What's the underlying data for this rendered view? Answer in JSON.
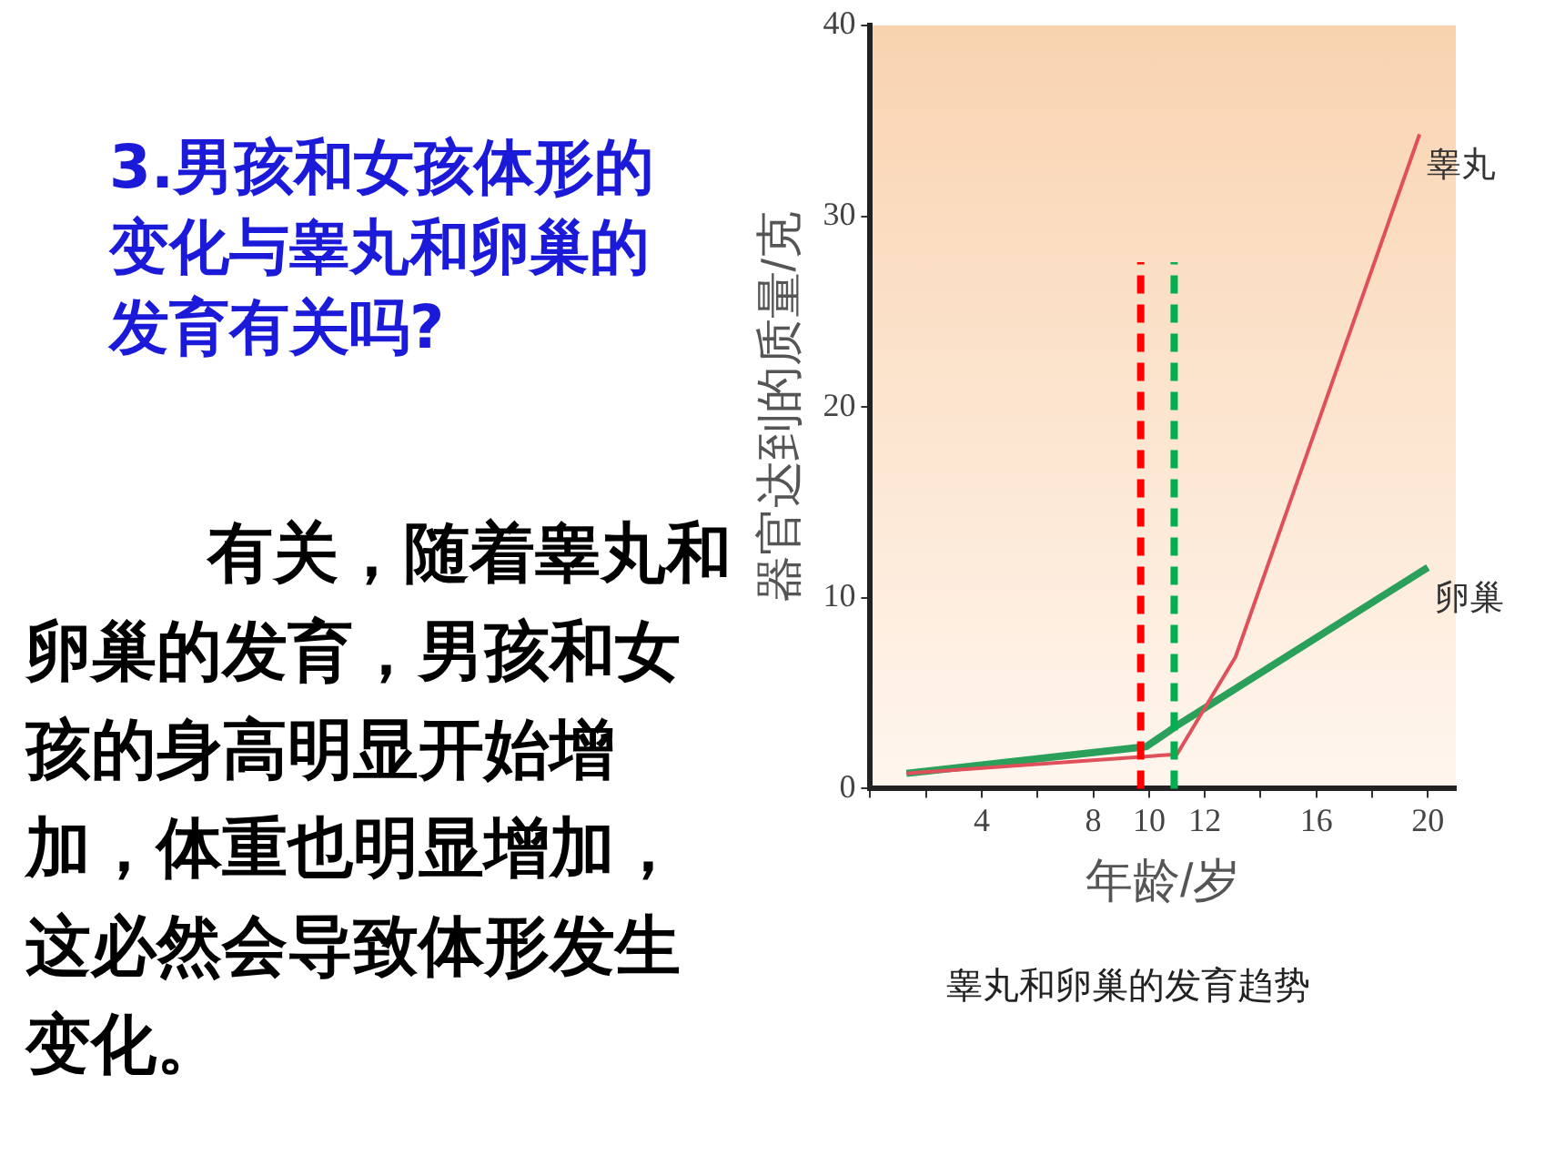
{
  "chart_data": {
    "type": "line",
    "title": "3.男孩和女孩体形的变化与睾丸和卵巢的发育有关吗?",
    "xlabel": "年龄/岁",
    "ylabel": "器官达到的质量/克",
    "annotations": [
      "有关，随着睾丸和卵巢的发育，男孩和女孩的身高明显开始增加，体重也明显增加，这必然会导致体形发生变化。",
      "睾丸和卵巢的发育趋势"
    ],
    "series": [
      {
        "name": "睾丸",
        "color": "#e0505a",
        "x": [
          1.3,
          11,
          13.1,
          19.7
        ],
        "values": [
          0.8,
          1.8,
          6.9,
          34.3
        ]
      },
      {
        "name": "卵巢",
        "color": "#2aa05a",
        "x": [
          1.3,
          9.9,
          11,
          20
        ],
        "values": [
          0.8,
          2.2,
          3.3,
          11.6
        ]
      }
    ],
    "xlim": [
      0,
      21
    ],
    "ylim": [
      0,
      40
    ],
    "xticks": [
      {
        "value": 0,
        "label": null
      },
      {
        "value": 2,
        "label": null
      },
      4,
      {
        "value": 6,
        "label": null
      },
      8,
      10,
      12,
      {
        "value": 14,
        "label": null
      },
      16,
      {
        "value": 18,
        "label": null
      },
      20
    ],
    "yticks": [
      0,
      10,
      20,
      30,
      40
    ],
    "ref_lines": [
      {
        "axis": "x",
        "value": 9.7,
        "color": "#ff0000",
        "line_style": "dashed"
      },
      {
        "axis": "x",
        "value": 10.9,
        "color": "#00b050",
        "line_style": "dashed"
      }
    ],
    "grid": false,
    "legend": false,
    "marker": "none",
    "line_style": "solid"
  }
}
